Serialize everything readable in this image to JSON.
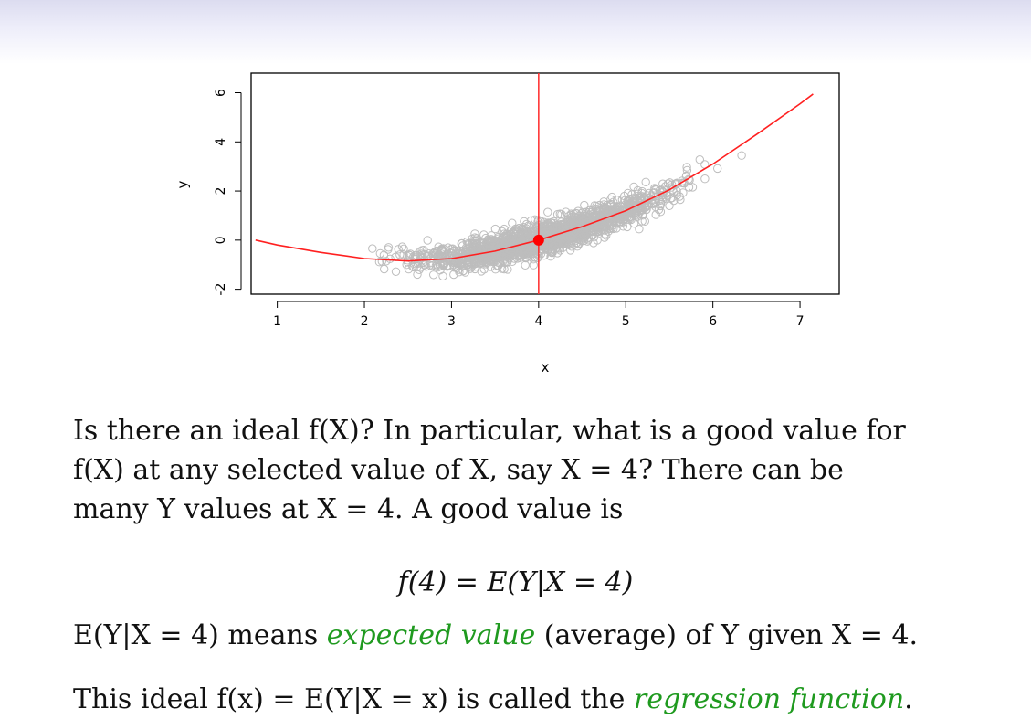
{
  "slide": {
    "para1_lines": [
      "Is there an ideal f(X)? In particular, what is a good value for",
      "f(X) at any selected value of X, say X = 4? There can be",
      "many Y values at X = 4. A good value is"
    ],
    "equation": "f(4) = E(Y|X = 4)",
    "line2_pre": "E(Y|X = 4) means ",
    "line2_em": "expected value",
    "line2_post": " (average) of Y given X = 4.",
    "line3_pre": "This ideal f(x) = E(Y|X = x) is called the ",
    "line3_em": "regression function",
    "line3_post": "."
  },
  "chart_data": {
    "type": "scatter",
    "xlabel": "x",
    "ylabel": "y",
    "xlim": [
      0.7,
      7.45
    ],
    "ylim": [
      -2.2,
      6.8
    ],
    "xticks": [
      "1",
      "2",
      "3",
      "4",
      "5",
      "6",
      "7"
    ],
    "yticks": [
      "-2",
      "0",
      "2",
      "4",
      "6"
    ],
    "grid": false,
    "point_color": "#bdbdbd",
    "curve_color": "#ff2020",
    "vline_x": 4,
    "highlight_point": {
      "x": 4,
      "y": 0
    },
    "scatter_pattern": "approx 2000 noisy points around the curve, denser between x=2 and x=6",
    "regression_curve": {
      "x": [
        0.75,
        1.0,
        1.5,
        2.0,
        2.5,
        3.0,
        3.5,
        4.0,
        4.5,
        5.0,
        5.5,
        6.0,
        6.5,
        7.0,
        7.15
      ],
      "y": [
        0.0,
        -0.2,
        -0.5,
        -0.75,
        -0.85,
        -0.75,
        -0.45,
        0.0,
        0.55,
        1.2,
        2.05,
        3.1,
        4.3,
        5.55,
        5.95
      ]
    }
  }
}
